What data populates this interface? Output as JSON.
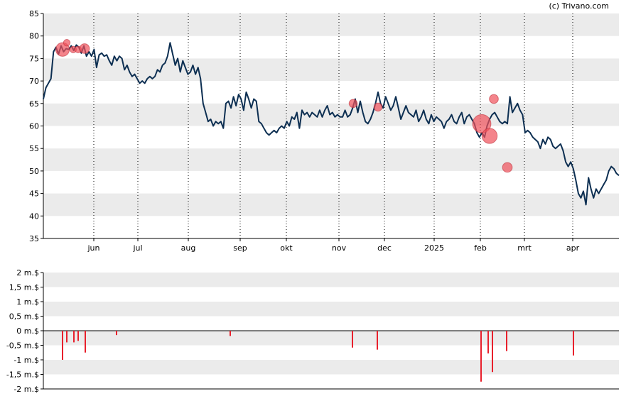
{
  "credit": "(c) Trivano.com",
  "chart_data": [
    {
      "type": "line",
      "x_labels": [
        "jun",
        "jul",
        "aug",
        "sep",
        "okt",
        "nov",
        "dec",
        "2025",
        "feb",
        "mrt",
        "apr"
      ],
      "y_ticks": [
        "85",
        "80",
        "75",
        "70",
        "65",
        "60",
        "55",
        "50",
        "45",
        "40",
        "35"
      ],
      "ylim": [
        35,
        85
      ],
      "grid": "horizontal bands, dotted vertical lines at month starts",
      "colors": {
        "line": "#0d2f52",
        "marker": "#f0505a",
        "band": "#ebebeb"
      },
      "series": [
        {
          "values": [
            66.0,
            68.5,
            69.5,
            70.5,
            76.5,
            77.5,
            76.0,
            77.8,
            76.5,
            77.2,
            77.0,
            77.8,
            76.8,
            78.0,
            77.5,
            76.2,
            77.8,
            75.5,
            76.5,
            75.5,
            77.0,
            73.0,
            75.8,
            76.2,
            75.5,
            75.8,
            74.5,
            73.5,
            75.5,
            74.5,
            75.5,
            75.0,
            72.5,
            73.5,
            72.0,
            71.0,
            71.5,
            70.5,
            69.5,
            70.0,
            69.5,
            70.5,
            71.0,
            70.5,
            71.0,
            72.5,
            72.0,
            73.5,
            74.0,
            75.5,
            78.5,
            76.0,
            73.5,
            75.0,
            72.0,
            74.5,
            73.0,
            71.5,
            72.0,
            73.5,
            71.5,
            73.0,
            70.5,
            65.0,
            63.0,
            61.0,
            61.5,
            60.0,
            61.0,
            60.5,
            61.0,
            59.5,
            65.0,
            65.5,
            64.0,
            66.5,
            64.5,
            67.0,
            66.0,
            63.5,
            67.5,
            66.0,
            64.0,
            66.0,
            65.5,
            61.0,
            60.5,
            59.5,
            58.5,
            58.0,
            58.5,
            59.0,
            58.5,
            59.5,
            60.0,
            59.5,
            61.0,
            60.0,
            62.0,
            61.5,
            63.0,
            59.5,
            63.5,
            62.5,
            63.0,
            62.0,
            63.0,
            62.5,
            62.0,
            63.5,
            62.0,
            63.5,
            64.5,
            62.5,
            63.0,
            62.0,
            62.5,
            62.0,
            62.0,
            63.5,
            62.0,
            62.5,
            64.0,
            66.0,
            63.0,
            65.5,
            63.0,
            61.0,
            60.5,
            61.5,
            63.0,
            65.0,
            67.5,
            65.0,
            64.0,
            66.5,
            65.0,
            63.5,
            64.5,
            66.5,
            64.0,
            61.5,
            63.0,
            64.5,
            63.0,
            62.5,
            62.0,
            63.5,
            61.0,
            62.0,
            63.5,
            61.5,
            60.5,
            62.5,
            61.0,
            62.0,
            61.5,
            61.0,
            59.5,
            61.0,
            61.5,
            62.5,
            61.0,
            60.5,
            62.0,
            63.0,
            60.5,
            62.0,
            62.5,
            61.5,
            60.5,
            58.5,
            57.5,
            58.5,
            57.5,
            60.0,
            61.5,
            62.5,
            63.0,
            62.0,
            61.0,
            60.5,
            61.0,
            60.5,
            66.5,
            63.0,
            64.0,
            65.0,
            63.5,
            62.5,
            58.5,
            59.0,
            58.5,
            57.5,
            57.0,
            56.5,
            55.0,
            57.0,
            56.0,
            57.5,
            57.0,
            55.5,
            55.0,
            55.5,
            56.0,
            54.5,
            52.0,
            51.0,
            52.0,
            50.5,
            48.0,
            45.0,
            44.0,
            45.5,
            42.5,
            48.5,
            46.0,
            44.0,
            46.0,
            45.0,
            46.0,
            47.0,
            48.0,
            50.0,
            51.0,
            50.5,
            49.5,
            49.0
          ]
        }
      ],
      "markers": [
        {
          "value": 77.0,
          "size": 1.2
        },
        {
          "value": 78.5,
          "size": 0.3
        },
        {
          "value": 77.0,
          "size": 0.3
        },
        {
          "value": 77.0,
          "size": 0.3
        },
        {
          "value": 77.2,
          "size": 0.7
        },
        {
          "value": 65.0,
          "size": 0.5
        },
        {
          "value": 64.2,
          "size": 0.5
        },
        {
          "value": 60.5,
          "size": 1.8
        },
        {
          "value": 57.8,
          "size": 1.4
        },
        {
          "value": 66.0,
          "size": 0.6
        },
        {
          "value": 50.8,
          "size": 0.7
        }
      ]
    },
    {
      "type": "bar",
      "y_ticks": [
        "2 m.$",
        "1,5 m.$",
        "1 m.$",
        "0,5 m.$",
        "0 m.$",
        "-0,5 m.$",
        "-1 m.$",
        "-1,5 m.$",
        "-2 m.$"
      ],
      "ylim": [
        -2,
        2
      ],
      "colors": {
        "bar": "#e8202c",
        "band": "#ebebeb"
      },
      "values": [
        -1.0,
        -0.4,
        -0.4,
        -0.35,
        -0.75,
        -0.15,
        -0.18,
        -0.58,
        -0.65,
        -1.75,
        -0.78,
        -1.42,
        -0.7,
        -0.85
      ]
    }
  ]
}
